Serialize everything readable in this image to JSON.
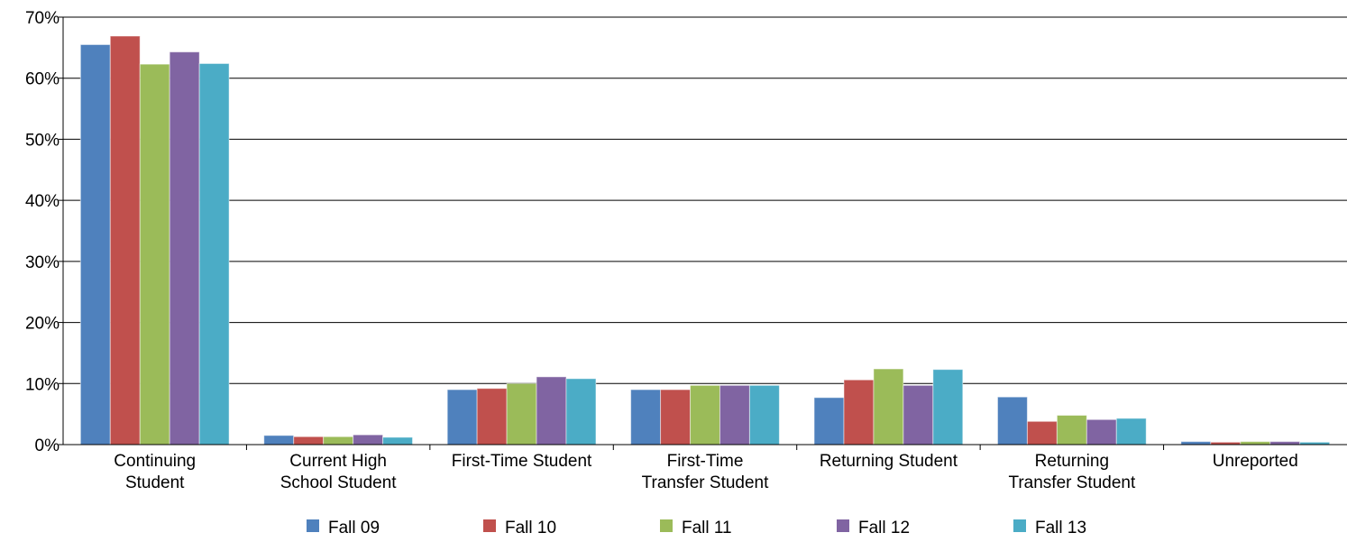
{
  "chart_data": {
    "type": "bar",
    "categories": [
      "Continuing\nStudent",
      "Current High\nSchool Student",
      "First-Time Student",
      "First-Time\nTransfer Student",
      "Returning Student",
      "Returning\nTransfer Student",
      "Unreported"
    ],
    "series": [
      {
        "name": "Fall 09",
        "color": "#4f81bd",
        "values": [
          65.5,
          1.5,
          9.0,
          9.0,
          7.7,
          7.8,
          0.5
        ]
      },
      {
        "name": "Fall 10",
        "color": "#c0504d",
        "values": [
          66.9,
          1.3,
          9.2,
          9.0,
          10.6,
          3.8,
          0.4
        ]
      },
      {
        "name": "Fall 11",
        "color": "#9bbb59",
        "values": [
          62.3,
          1.3,
          10.0,
          9.7,
          12.4,
          4.8,
          0.5
        ]
      },
      {
        "name": "Fall 12",
        "color": "#8064a2",
        "values": [
          64.3,
          1.6,
          11.1,
          9.7,
          9.7,
          4.1,
          0.5
        ]
      },
      {
        "name": "Fall 13",
        "color": "#4bacc6",
        "values": [
          62.4,
          1.2,
          10.8,
          9.7,
          12.3,
          4.3,
          0.4
        ]
      }
    ],
    "ylim": [
      0,
      70
    ],
    "yticks": [
      {
        "value": 0,
        "label": "0%"
      },
      {
        "value": 10,
        "label": "10%"
      },
      {
        "value": 20,
        "label": "20%"
      },
      {
        "value": 30,
        "label": "30%"
      },
      {
        "value": 40,
        "label": "40%"
      },
      {
        "value": 50,
        "label": "50%"
      },
      {
        "value": 60,
        "label": "60%"
      },
      {
        "value": 70,
        "label": "70%"
      }
    ],
    "grid": true,
    "legend": "bottom"
  }
}
